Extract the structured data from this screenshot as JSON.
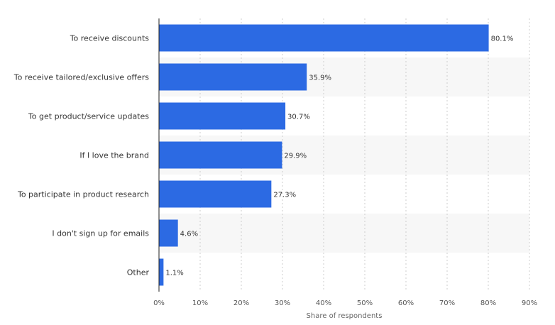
{
  "chart_data": {
    "type": "bar",
    "orientation": "horizontal",
    "categories": [
      "To receive discounts",
      "To receive tailored/exclusive offers",
      "To get product/service updates",
      "If I love the brand",
      "To participate in product research",
      "I don't sign up for emails",
      "Other"
    ],
    "values": [
      80.1,
      35.9,
      30.7,
      29.9,
      27.3,
      4.6,
      1.1
    ],
    "value_labels": [
      "80.1%",
      "35.9%",
      "30.7%",
      "29.9%",
      "27.3%",
      "4.6%",
      "1.1%"
    ],
    "xlabel": "Share of respondents",
    "ylabel": "",
    "xlim": [
      0,
      90
    ],
    "x_ticks": [
      0,
      10,
      20,
      30,
      40,
      50,
      60,
      70,
      80,
      90
    ],
    "x_tick_labels": [
      "0%",
      "10%",
      "20%",
      "30%",
      "40%",
      "50%",
      "60%",
      "70%",
      "80%",
      "90%"
    ],
    "grid": "vertical dashed",
    "legend": "none",
    "bar_color": "#2c6ae3",
    "band_color": "#f7f7f7"
  }
}
